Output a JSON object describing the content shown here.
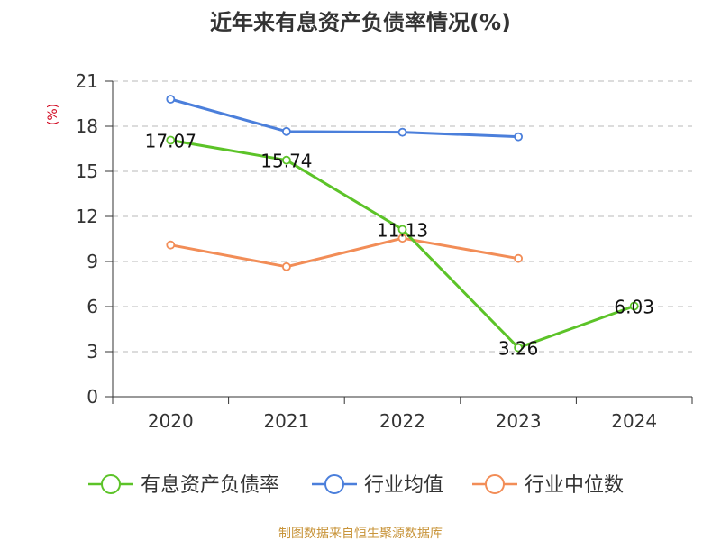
{
  "chart_data": {
    "type": "line",
    "title": "近年来有息资产负债率情况(%)",
    "ylabel": "(%)",
    "xlabel": "",
    "categories": [
      "2020",
      "2021",
      "2022",
      "2023",
      "2024"
    ],
    "ylim": [
      0,
      21
    ],
    "yticks": [
      0,
      3,
      6,
      9,
      12,
      15,
      18,
      21
    ],
    "grid": "horizontal-dashed",
    "legend_position": "bottom",
    "series": [
      {
        "name": "有息资产负债率",
        "color": "#5cc328",
        "values": [
          17.07,
          15.74,
          11.13,
          3.26,
          6.03
        ],
        "labels": [
          "17.07",
          "15.74",
          "11.13",
          "3.26",
          "6.03"
        ]
      },
      {
        "name": "行业均值",
        "color": "#4b7fdb",
        "values": [
          19.8,
          17.65,
          17.6,
          17.3,
          null
        ]
      },
      {
        "name": "行业中位数",
        "color": "#f28d57",
        "values": [
          10.1,
          8.65,
          10.55,
          9.2,
          null
        ]
      }
    ]
  },
  "source": "制图数据来自恒生聚源数据库"
}
